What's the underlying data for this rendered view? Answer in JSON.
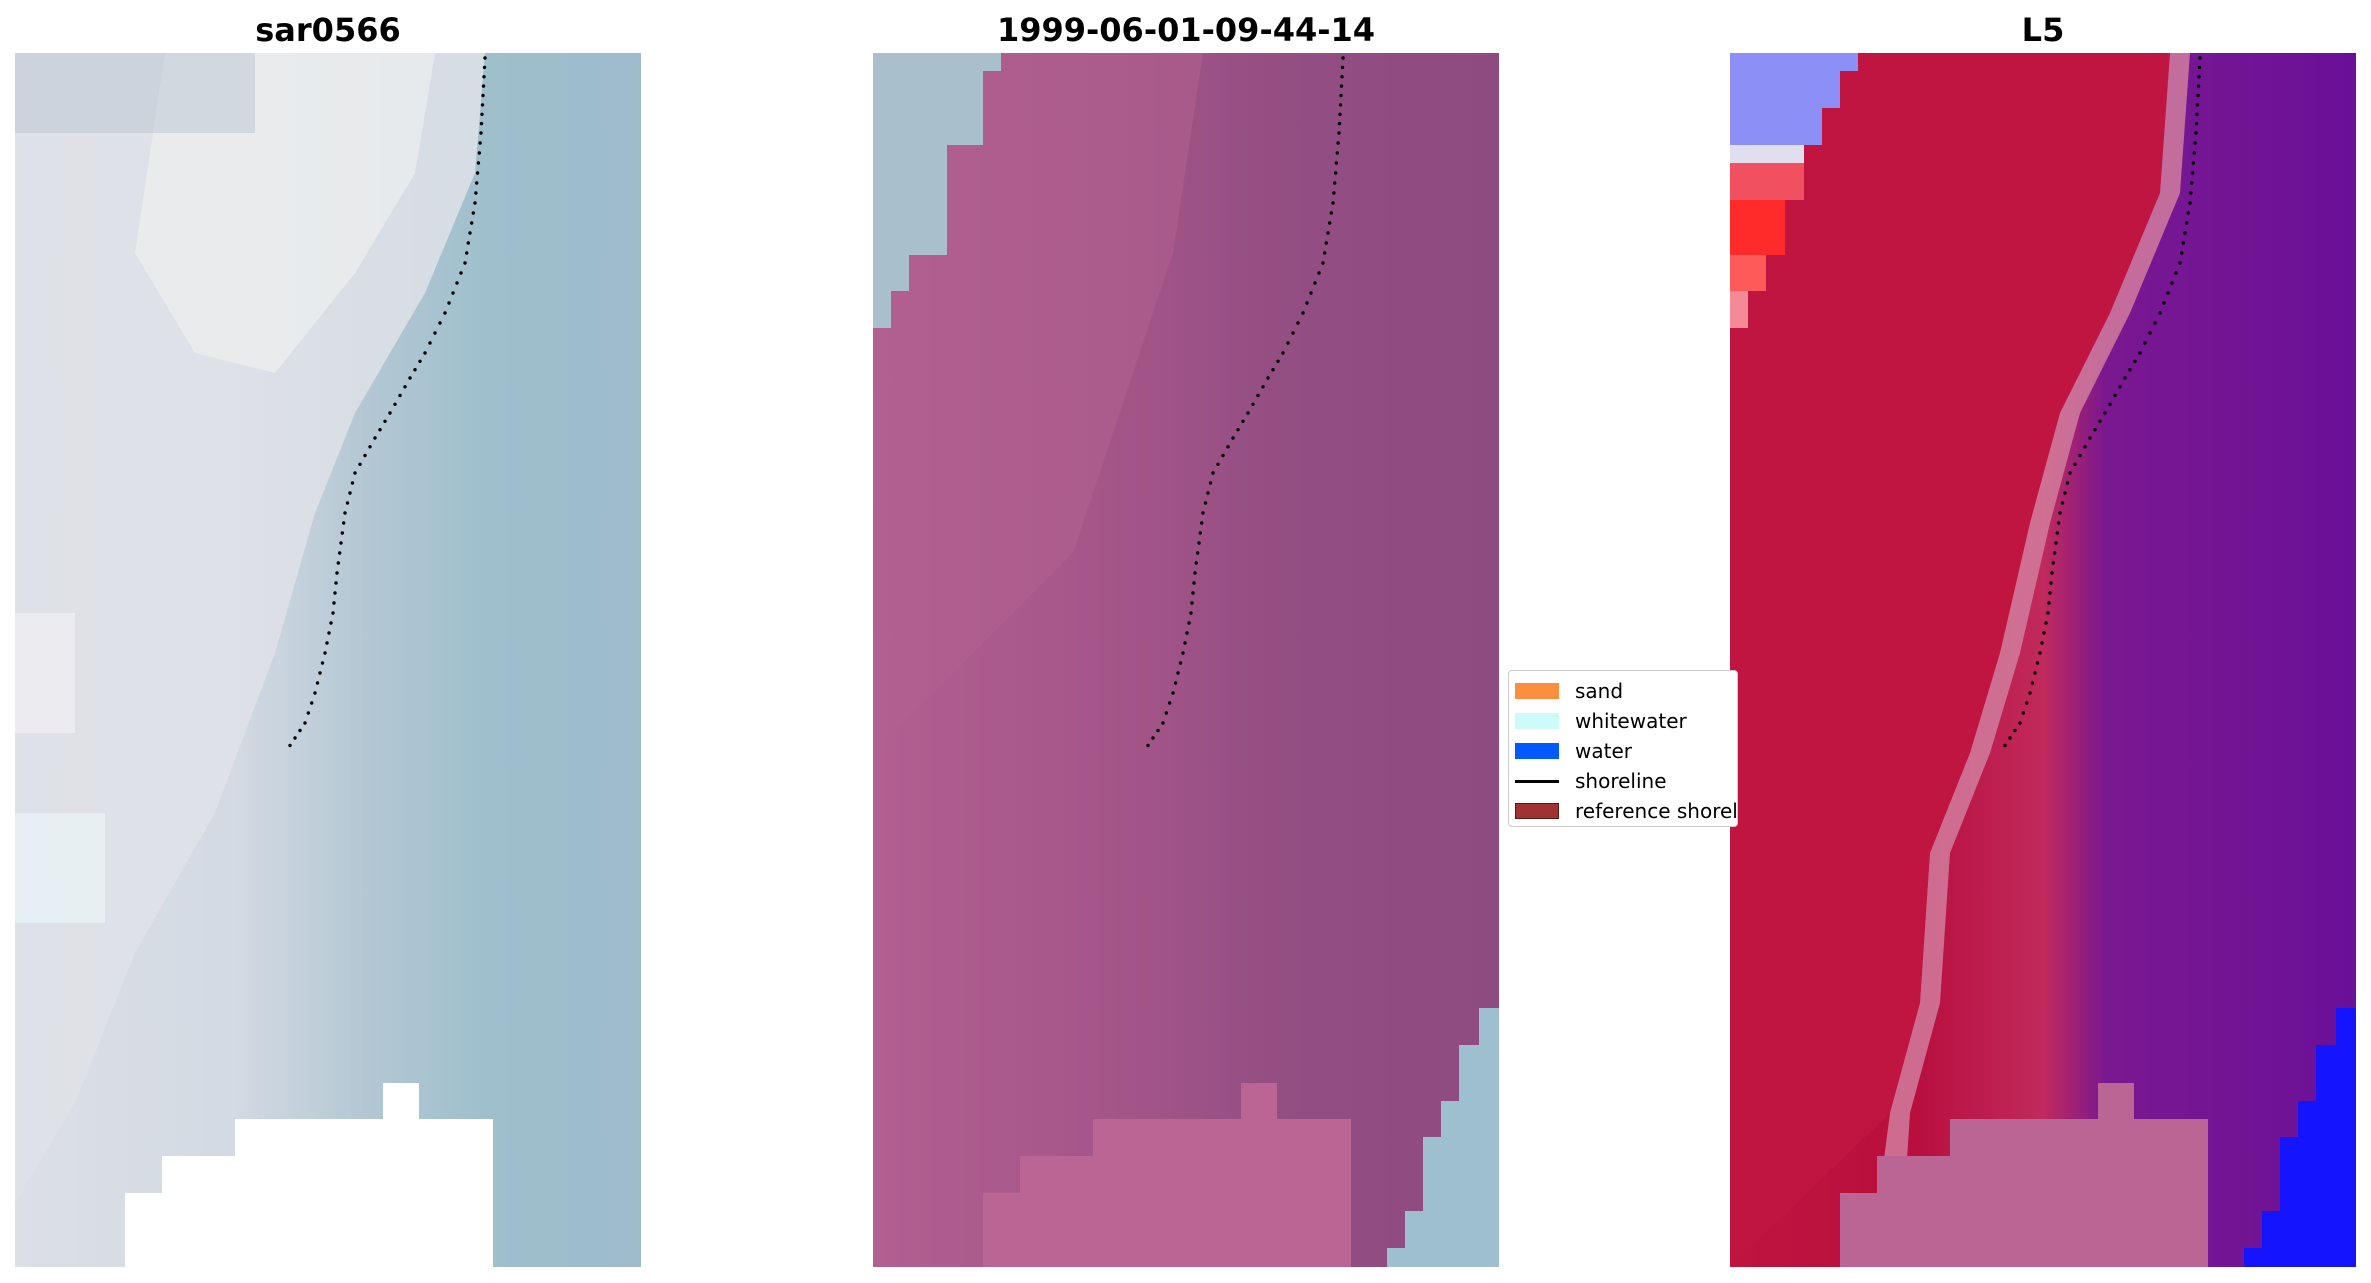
{
  "panels": [
    {
      "title": "sar0566"
    },
    {
      "title": "1999-06-01-09-44-14"
    },
    {
      "title": "L5"
    }
  ],
  "legend": {
    "items": [
      {
        "label": "sand",
        "color": "#f98f3f",
        "kind": "patch"
      },
      {
        "label": "whitewater",
        "color": "#ccfbf9",
        "kind": "patch"
      },
      {
        "label": "water",
        "color": "#0059ff",
        "kind": "patch"
      },
      {
        "label": "shoreline",
        "color": "#000000",
        "kind": "line"
      },
      {
        "label": "reference shoreline",
        "color": "#a03232",
        "kind": "patch"
      }
    ]
  }
}
